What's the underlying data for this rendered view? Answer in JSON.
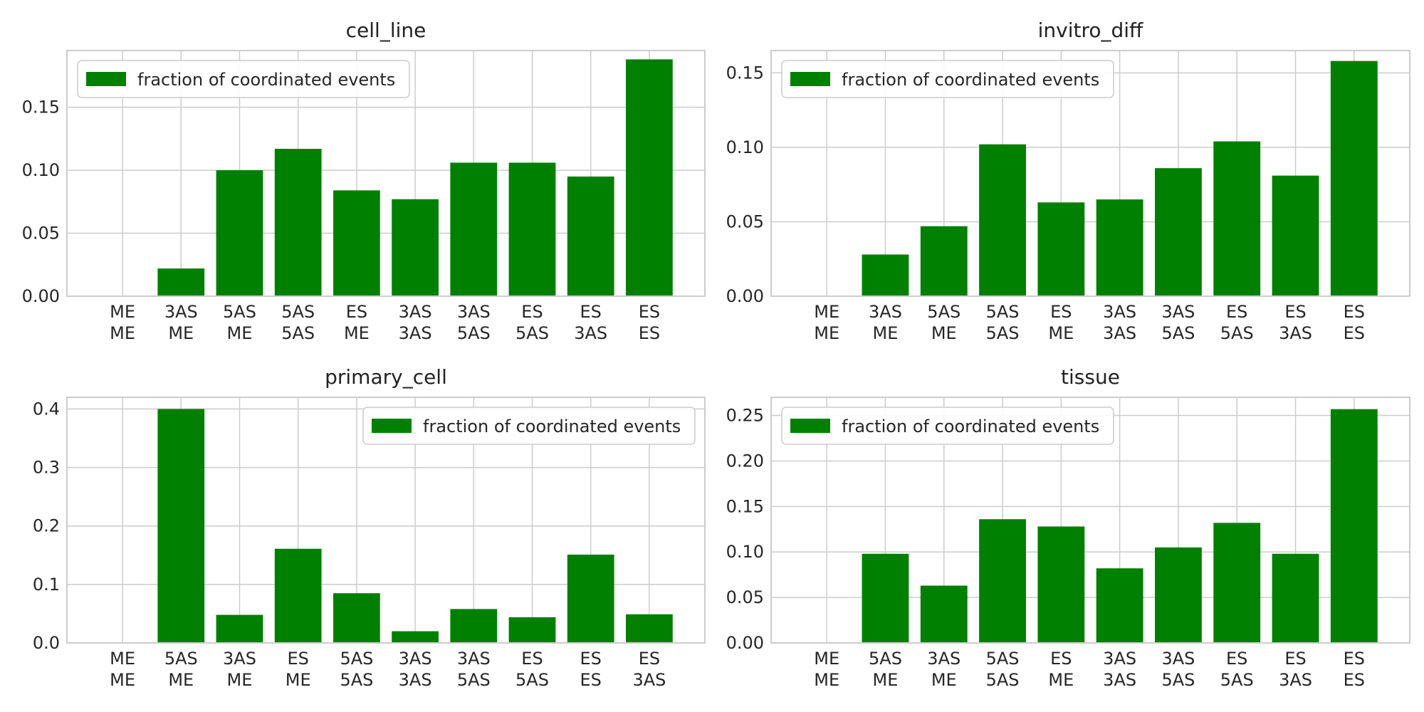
{
  "colors": {
    "bar": "#008000",
    "grid": "#cccccc",
    "frame": "#cccccc",
    "text": "#262626"
  },
  "chart_data": [
    {
      "type": "bar",
      "title": "cell_line",
      "categories": [
        [
          "ME",
          "ME"
        ],
        [
          "3AS",
          "ME"
        ],
        [
          "5AS",
          "ME"
        ],
        [
          "5AS",
          "5AS"
        ],
        [
          "ES",
          "ME"
        ],
        [
          "3AS",
          "3AS"
        ],
        [
          "3AS",
          "5AS"
        ],
        [
          "ES",
          "5AS"
        ],
        [
          "ES",
          "3AS"
        ],
        [
          "ES",
          "ES"
        ]
      ],
      "series": [
        {
          "name": "fraction of coordinated events",
          "values": [
            0.0,
            0.022,
            0.1,
            0.117,
            0.084,
            0.077,
            0.106,
            0.106,
            0.095,
            0.188
          ]
        }
      ],
      "ylim": [
        0,
        0.195
      ],
      "yticks": [
        "0.00",
        "0.05",
        "0.10",
        "0.15"
      ],
      "xlabel": "",
      "ylabel": "",
      "legend": "upper-left",
      "grid": true
    },
    {
      "type": "bar",
      "title": "invitro_diff",
      "categories": [
        [
          "ME",
          "ME"
        ],
        [
          "3AS",
          "ME"
        ],
        [
          "5AS",
          "ME"
        ],
        [
          "5AS",
          "5AS"
        ],
        [
          "ES",
          "ME"
        ],
        [
          "3AS",
          "3AS"
        ],
        [
          "3AS",
          "5AS"
        ],
        [
          "ES",
          "5AS"
        ],
        [
          "ES",
          "3AS"
        ],
        [
          "ES",
          "ES"
        ]
      ],
      "series": [
        {
          "name": "fraction of coordinated events",
          "values": [
            0.0,
            0.028,
            0.047,
            0.102,
            0.063,
            0.065,
            0.086,
            0.104,
            0.081,
            0.158
          ]
        }
      ],
      "ylim": [
        0,
        0.165
      ],
      "yticks": [
        "0.00",
        "0.05",
        "0.10",
        "0.15"
      ],
      "xlabel": "",
      "ylabel": "",
      "legend": "upper-left",
      "grid": true
    },
    {
      "type": "bar",
      "title": "primary_cell",
      "categories": [
        [
          "ME",
          "ME"
        ],
        [
          "5AS",
          "ME"
        ],
        [
          "3AS",
          "ME"
        ],
        [
          "ES",
          "ME"
        ],
        [
          "5AS",
          "5AS"
        ],
        [
          "3AS",
          "3AS"
        ],
        [
          "3AS",
          "5AS"
        ],
        [
          "ES",
          "5AS"
        ],
        [
          "ES",
          "ES"
        ],
        [
          "ES",
          "3AS"
        ]
      ],
      "series": [
        {
          "name": "fraction of coordinated events",
          "values": [
            0.0,
            0.4,
            0.048,
            0.161,
            0.085,
            0.02,
            0.058,
            0.044,
            0.151,
            0.049
          ]
        }
      ],
      "ylim": [
        0,
        0.42
      ],
      "yticks": [
        "0.0",
        "0.1",
        "0.2",
        "0.3",
        "0.4"
      ],
      "xlabel": "",
      "ylabel": "",
      "legend": "upper-right",
      "grid": true
    },
    {
      "type": "bar",
      "title": "tissue",
      "categories": [
        [
          "ME",
          "ME"
        ],
        [
          "5AS",
          "ME"
        ],
        [
          "3AS",
          "ME"
        ],
        [
          "5AS",
          "5AS"
        ],
        [
          "ES",
          "ME"
        ],
        [
          "3AS",
          "3AS"
        ],
        [
          "3AS",
          "5AS"
        ],
        [
          "ES",
          "5AS"
        ],
        [
          "ES",
          "3AS"
        ],
        [
          "ES",
          "ES"
        ]
      ],
      "series": [
        {
          "name": "fraction of coordinated events",
          "values": [
            0.0,
            0.098,
            0.063,
            0.136,
            0.128,
            0.082,
            0.105,
            0.132,
            0.098,
            0.257
          ]
        }
      ],
      "ylim": [
        0,
        0.27
      ],
      "yticks": [
        "0.00",
        "0.05",
        "0.10",
        "0.15",
        "0.20",
        "0.25"
      ],
      "xlabel": "",
      "ylabel": "",
      "legend": "upper-left",
      "grid": true
    }
  ]
}
